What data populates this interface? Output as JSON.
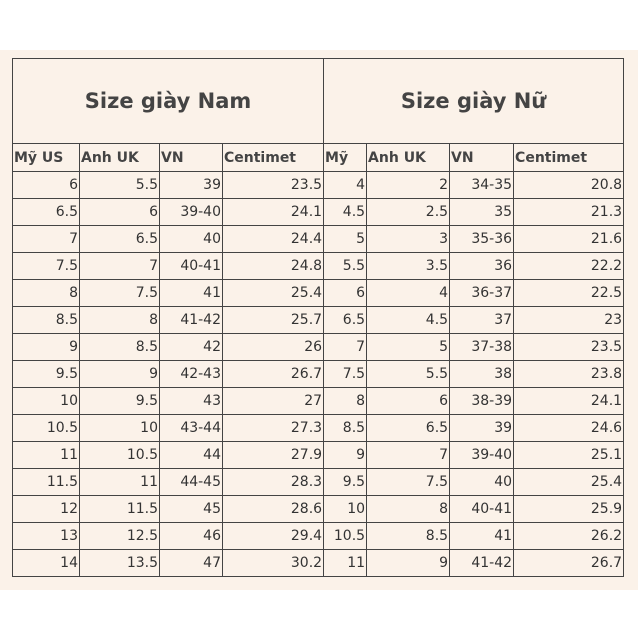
{
  "header": {
    "titles": [
      "Size giày Nam",
      "Size giày Nữ"
    ],
    "columns": [
      "Mỹ US",
      "Anh UK",
      "VN",
      "Centimet",
      "Mỹ",
      "Anh UK",
      "VN",
      "Centimet"
    ]
  },
  "table": {
    "rows": [
      [
        "6",
        "5.5",
        "39",
        "23.5",
        "4",
        "2",
        "34-35",
        "20.8"
      ],
      [
        "6.5",
        "6",
        "39-40",
        "24.1",
        "4.5",
        "2.5",
        "35",
        "21.3"
      ],
      [
        "7",
        "6.5",
        "40",
        "24.4",
        "5",
        "3",
        "35-36",
        "21.6"
      ],
      [
        "7.5",
        "7",
        "40-41",
        "24.8",
        "5.5",
        "3.5",
        "36",
        "22.2"
      ],
      [
        "8",
        "7.5",
        "41",
        "25.4",
        "6",
        "4",
        "36-37",
        "22.5"
      ],
      [
        "8.5",
        "8",
        "41-42",
        "25.7",
        "6.5",
        "4.5",
        "37",
        "23"
      ],
      [
        "9",
        "8.5",
        "42",
        "26",
        "7",
        "5",
        "37-38",
        "23.5"
      ],
      [
        "9.5",
        "9",
        "42-43",
        "26.7",
        "7.5",
        "5.5",
        "38",
        "23.8"
      ],
      [
        "10",
        "9.5",
        "43",
        "27",
        "8",
        "6",
        "38-39",
        "24.1"
      ],
      [
        "10.5",
        "10",
        "43-44",
        "27.3",
        "8.5",
        "6.5",
        "39",
        "24.6"
      ],
      [
        "11",
        "10.5",
        "44",
        "27.9",
        "9",
        "7",
        "39-40",
        "25.1"
      ],
      [
        "11.5",
        "11",
        "44-45",
        "28.3",
        "9.5",
        "7.5",
        "40",
        "25.4"
      ],
      [
        "12",
        "11.5",
        "45",
        "28.6",
        "10",
        "8",
        "40-41",
        "25.9"
      ],
      [
        "13",
        "12.5",
        "46",
        "29.4",
        "10.5",
        "8.5",
        "41",
        "26.2"
      ],
      [
        "14",
        "13.5",
        "47",
        "30.2",
        "11",
        "9",
        "41-42",
        "26.7"
      ]
    ]
  }
}
